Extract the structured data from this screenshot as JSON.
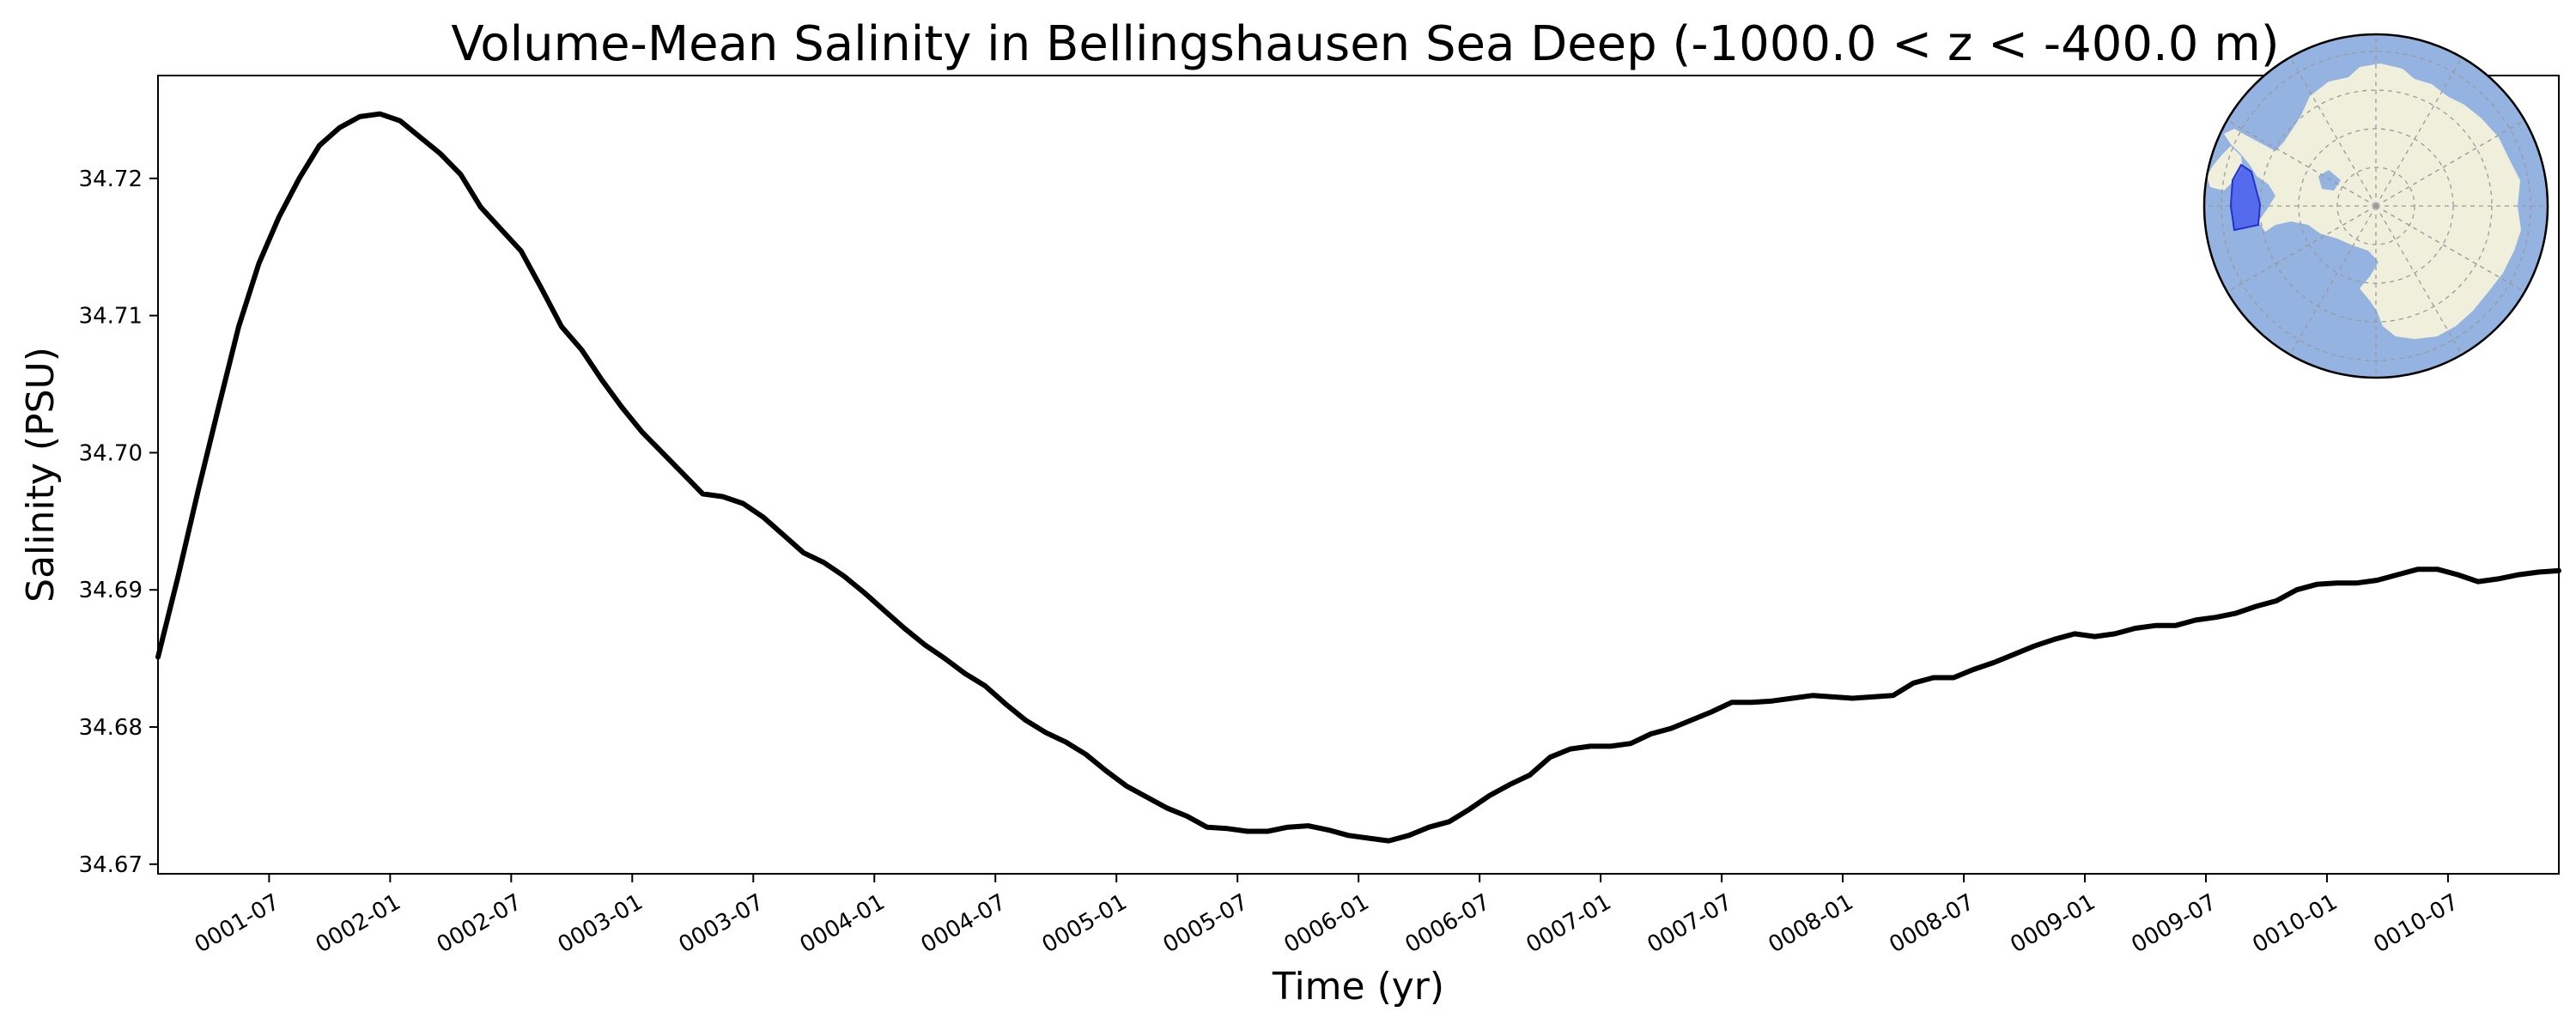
{
  "chart_data": {
    "type": "line",
    "title": "Volume-Mean Salinity in Bellingshausen Sea Deep (-1000.0 < z < -400.0 m)",
    "xlabel": "Time (yr)",
    "ylabel": "Salinity (PSU)",
    "x_axis": "date",
    "xlim": [
      "0001-01-16",
      "0010-12-16"
    ],
    "ylim": [
      34.6693,
      34.7275
    ],
    "grid": false,
    "legend": "none",
    "line_color": "#000000",
    "x_ticks": [
      "0001-07",
      "0002-01",
      "0002-07",
      "0003-01",
      "0003-07",
      "0004-01",
      "0004-07",
      "0005-01",
      "0005-07",
      "0006-01",
      "0006-07",
      "0007-01",
      "0007-07",
      "0008-01",
      "0008-07",
      "0009-01",
      "0009-07",
      "0010-01",
      "0010-07"
    ],
    "y_ticks": [
      "34.67",
      "34.68",
      "34.69",
      "34.70",
      "34.71",
      "34.72"
    ],
    "series": [
      {
        "x": [
          "0001-01",
          "0001-02",
          "0001-03",
          "0001-04",
          "0001-05",
          "0001-06",
          "0001-07",
          "0001-08",
          "0001-09",
          "0001-10",
          "0001-11",
          "0001-12",
          "0002-01",
          "0002-02",
          "0002-03",
          "0002-04",
          "0002-05",
          "0002-06",
          "0002-07",
          "0002-08",
          "0002-09",
          "0002-10",
          "0002-11",
          "0002-12",
          "0003-01",
          "0003-02",
          "0003-03",
          "0003-04",
          "0003-05",
          "0003-06",
          "0003-07",
          "0003-08",
          "0003-09",
          "0003-10",
          "0003-11",
          "0003-12",
          "0004-01",
          "0004-02",
          "0004-03",
          "0004-04",
          "0004-05",
          "0004-06",
          "0004-07",
          "0004-08",
          "0004-09",
          "0004-10",
          "0004-11",
          "0004-12",
          "0005-01",
          "0005-02",
          "0005-03",
          "0005-04",
          "0005-05",
          "0005-06",
          "0005-07",
          "0005-08",
          "0005-09",
          "0005-10",
          "0005-11",
          "0005-12",
          "0006-01",
          "0006-02",
          "0006-03",
          "0006-04",
          "0006-05",
          "0006-06",
          "0006-07",
          "0006-08",
          "0006-09",
          "0006-10",
          "0006-11",
          "0006-12",
          "0007-01",
          "0007-02",
          "0007-03",
          "0007-04",
          "0007-05",
          "0007-06",
          "0007-07",
          "0007-08",
          "0007-09",
          "0007-10",
          "0007-11",
          "0007-12",
          "0008-01",
          "0008-02",
          "0008-03",
          "0008-04",
          "0008-05",
          "0008-06",
          "0008-07",
          "0008-08",
          "0008-09",
          "0008-10",
          "0008-11",
          "0008-12",
          "0009-01",
          "0009-02",
          "0009-03",
          "0009-04",
          "0009-05",
          "0009-06",
          "0009-07",
          "0009-08",
          "0009-09",
          "0009-10",
          "0009-11",
          "0009-12",
          "0010-01",
          "0010-02",
          "0010-03",
          "0010-04",
          "0010-05",
          "0010-06",
          "0010-07",
          "0010-08",
          "0010-09",
          "0010-10",
          "0010-11",
          "0010-12"
        ],
        "y": [
          34.6851,
          34.691,
          34.6973,
          34.7033,
          34.7092,
          34.7138,
          34.7172,
          34.72,
          34.7224,
          34.7237,
          34.7245,
          34.7247,
          34.7242,
          34.723,
          34.7218,
          34.7203,
          34.7179,
          34.7163,
          34.7147,
          34.712,
          34.7092,
          34.7075,
          34.7053,
          34.7033,
          34.7015,
          34.7,
          34.6985,
          34.697,
          34.6968,
          34.6963,
          34.6953,
          34.694,
          34.6927,
          34.692,
          34.691,
          34.6898,
          34.6885,
          34.6872,
          34.686,
          34.685,
          34.6839,
          34.683,
          34.6817,
          34.6805,
          34.6796,
          34.6789,
          34.678,
          34.6768,
          34.6757,
          34.6749,
          34.6741,
          34.6735,
          34.6727,
          34.6726,
          34.6724,
          34.6724,
          34.6727,
          34.6728,
          34.6725,
          34.6721,
          34.6719,
          34.6717,
          34.6721,
          34.6727,
          34.6731,
          34.674,
          34.675,
          34.6758,
          34.6765,
          34.6778,
          34.6784,
          34.6786,
          34.6786,
          34.6788,
          34.6795,
          34.6799,
          34.6805,
          34.6811,
          34.6818,
          34.6818,
          34.6819,
          34.6821,
          34.6823,
          34.6822,
          34.6821,
          34.6822,
          34.6823,
          34.6832,
          34.6836,
          34.6836,
          34.6842,
          34.6847,
          34.6853,
          34.6859,
          34.6864,
          34.6868,
          34.6866,
          34.6868,
          34.6872,
          34.6874,
          34.6874,
          34.6878,
          34.688,
          34.6883,
          34.6888,
          34.6892,
          34.69,
          34.6904,
          34.6905,
          34.6905,
          34.6907,
          34.6911,
          34.6915,
          34.6915,
          34.6911,
          34.6906,
          34.6908,
          34.6911,
          34.6913,
          34.6914
        ]
      }
    ]
  },
  "inset_map": {
    "ocean_color": "#94b3e0",
    "land_color": "#efefdc",
    "region_color": "#4a5ef0",
    "gridline_color": "#9a9a9a"
  }
}
